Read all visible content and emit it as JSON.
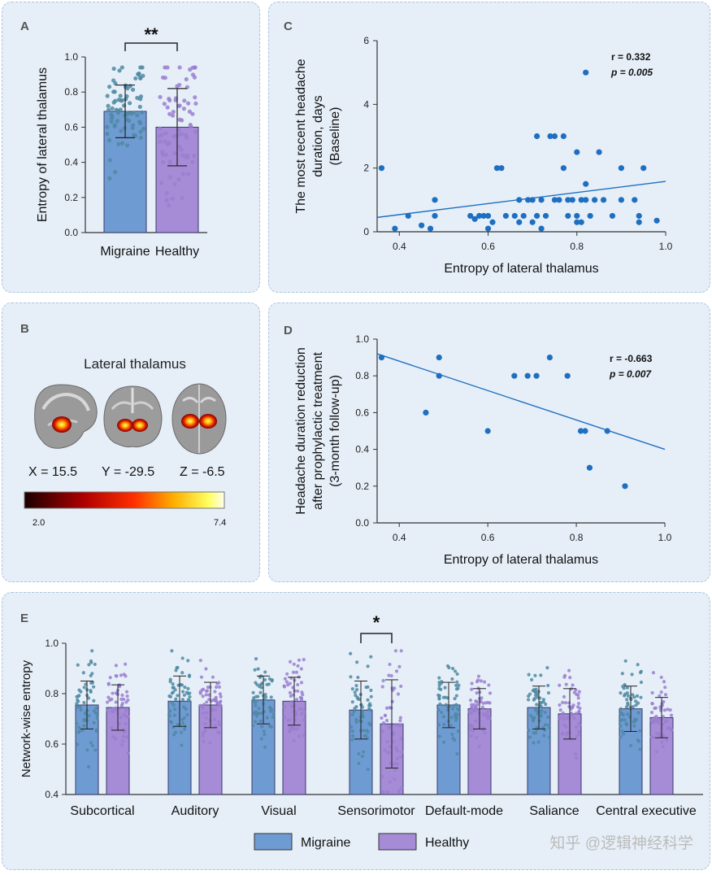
{
  "colors": {
    "migraine": "#6f9bd3",
    "healthy": "#a68bd6",
    "migraine_dot": "#4f8aa3",
    "healthy_dot": "#9a7fd0",
    "scatter": "#1f6fc0",
    "line": "#1f6fc0"
  },
  "panels": {
    "A": "A",
    "B": "B",
    "C": "C",
    "D": "D",
    "E": "E"
  },
  "panelB": {
    "title": "Lateral thalamus",
    "coords": [
      "X = 15.5",
      "Y = -29.5",
      "Z = -6.5"
    ],
    "cbar_min": "2.0",
    "cbar_max": "7.4"
  },
  "legend": {
    "migraine": "Migraine",
    "healthy": "Healthy"
  },
  "watermark": "知乎 @逻辑神经科学",
  "chart_data": [
    {
      "id": "A",
      "type": "bar",
      "categories": [
        "Migraine",
        "Healthy"
      ],
      "values": [
        0.69,
        0.6
      ],
      "errors": [
        0.15,
        0.22
      ],
      "ylabel": "Entropy of lateral thalamus",
      "ylim": [
        0,
        1.0
      ],
      "yticks": [
        "0.0",
        "0.2",
        "0.4",
        "0.6",
        "0.8",
        "1.0"
      ],
      "significance": "**"
    },
    {
      "id": "C",
      "type": "scatter",
      "xlabel": "Entropy of lateral thalamus",
      "ylabel_lines": [
        "The most recent headache",
        "duration, days",
        "(Baseline)"
      ],
      "xlim": [
        0.35,
        1.0
      ],
      "ylim": [
        0,
        6
      ],
      "xticks": [
        "0.4",
        "0.6",
        "0.8",
        "1.0"
      ],
      "yticks": [
        "0",
        "2",
        "4",
        "6"
      ],
      "stats": [
        "r = 0.332",
        "p = 0.005"
      ],
      "points": [
        [
          0.36,
          2
        ],
        [
          0.39,
          0.1
        ],
        [
          0.42,
          0.5
        ],
        [
          0.45,
          0.2
        ],
        [
          0.47,
          0.1
        ],
        [
          0.48,
          0.5
        ],
        [
          0.48,
          1
        ],
        [
          0.56,
          0.5
        ],
        [
          0.57,
          0.4
        ],
        [
          0.58,
          0.5
        ],
        [
          0.59,
          0.5
        ],
        [
          0.6,
          0.1
        ],
        [
          0.6,
          0.5
        ],
        [
          0.61,
          0.3
        ],
        [
          0.62,
          2
        ],
        [
          0.63,
          2
        ],
        [
          0.64,
          0.5
        ],
        [
          0.66,
          0.5
        ],
        [
          0.67,
          1
        ],
        [
          0.67,
          0.3
        ],
        [
          0.68,
          0.5
        ],
        [
          0.69,
          1
        ],
        [
          0.7,
          1
        ],
        [
          0.7,
          0.3
        ],
        [
          0.71,
          0.5
        ],
        [
          0.71,
          3
        ],
        [
          0.72,
          0.1
        ],
        [
          0.72,
          1
        ],
        [
          0.73,
          0.5
        ],
        [
          0.74,
          3
        ],
        [
          0.75,
          3
        ],
        [
          0.75,
          1
        ],
        [
          0.76,
          1
        ],
        [
          0.77,
          2
        ],
        [
          0.77,
          3
        ],
        [
          0.78,
          1
        ],
        [
          0.78,
          0.5
        ],
        [
          0.79,
          1
        ],
        [
          0.8,
          2.5
        ],
        [
          0.8,
          0.3
        ],
        [
          0.8,
          0.5
        ],
        [
          0.81,
          0.3
        ],
        [
          0.81,
          1
        ],
        [
          0.82,
          1.5
        ],
        [
          0.82,
          1
        ],
        [
          0.82,
          5
        ],
        [
          0.83,
          0.5
        ],
        [
          0.84,
          1
        ],
        [
          0.85,
          2.5
        ],
        [
          0.86,
          1
        ],
        [
          0.88,
          0.5
        ],
        [
          0.9,
          2
        ],
        [
          0.9,
          1
        ],
        [
          0.93,
          1
        ],
        [
          0.94,
          0.5
        ],
        [
          0.94,
          0.3
        ],
        [
          0.95,
          2
        ],
        [
          0.98,
          0.35
        ]
      ],
      "fit": [
        [
          0.35,
          0.45
        ],
        [
          1.0,
          1.58
        ]
      ]
    },
    {
      "id": "D",
      "type": "scatter",
      "xlabel": "Entropy of lateral thalamus",
      "ylabel_lines": [
        "Headache duration reduction",
        "after prophylactic treatment",
        "(3-month follow-up)"
      ],
      "xlim": [
        0.35,
        1.0
      ],
      "ylim": [
        0,
        1.0
      ],
      "xticks": [
        "0.4",
        "0.6",
        "0.8",
        "1.0"
      ],
      "yticks": [
        "0.0",
        "0.2",
        "0.4",
        "0.6",
        "0.8",
        "1.0"
      ],
      "stats": [
        "r = -0.663",
        "p = 0.007"
      ],
      "points": [
        [
          0.36,
          0.9
        ],
        [
          0.46,
          0.6
        ],
        [
          0.49,
          0.8
        ],
        [
          0.49,
          0.9
        ],
        [
          0.6,
          0.5
        ],
        [
          0.66,
          0.8
        ],
        [
          0.69,
          0.8
        ],
        [
          0.71,
          0.8
        ],
        [
          0.74,
          0.9
        ],
        [
          0.78,
          0.8
        ],
        [
          0.81,
          0.5
        ],
        [
          0.82,
          0.5
        ],
        [
          0.83,
          0.3
        ],
        [
          0.87,
          0.5
        ],
        [
          0.91,
          0.2
        ]
      ],
      "fit": [
        [
          0.35,
          0.92
        ],
        [
          1.0,
          0.4
        ]
      ]
    },
    {
      "id": "E",
      "type": "bar",
      "ylabel": "Network-wise entropy",
      "ylim": [
        0.4,
        1.0
      ],
      "yticks": [
        "0.4",
        "0.6",
        "0.8",
        "1.0"
      ],
      "categories": [
        "Subcortical",
        "Auditory",
        "Visual",
        "Sensorimotor",
        "Default-mode",
        "Saliance",
        "Central executive"
      ],
      "series": [
        {
          "name": "Migraine",
          "values": [
            0.755,
            0.77,
            0.775,
            0.735,
            0.755,
            0.745,
            0.74
          ],
          "errors": [
            0.095,
            0.1,
            0.095,
            0.115,
            0.09,
            0.085,
            0.09
          ]
        },
        {
          "name": "Healthy",
          "values": [
            0.745,
            0.755,
            0.77,
            0.68,
            0.74,
            0.72,
            0.705
          ],
          "errors": [
            0.09,
            0.09,
            0.095,
            0.175,
            0.08,
            0.1,
            0.08
          ]
        }
      ],
      "significance": {
        "category": "Sensorimotor",
        "label": "*"
      }
    }
  ]
}
